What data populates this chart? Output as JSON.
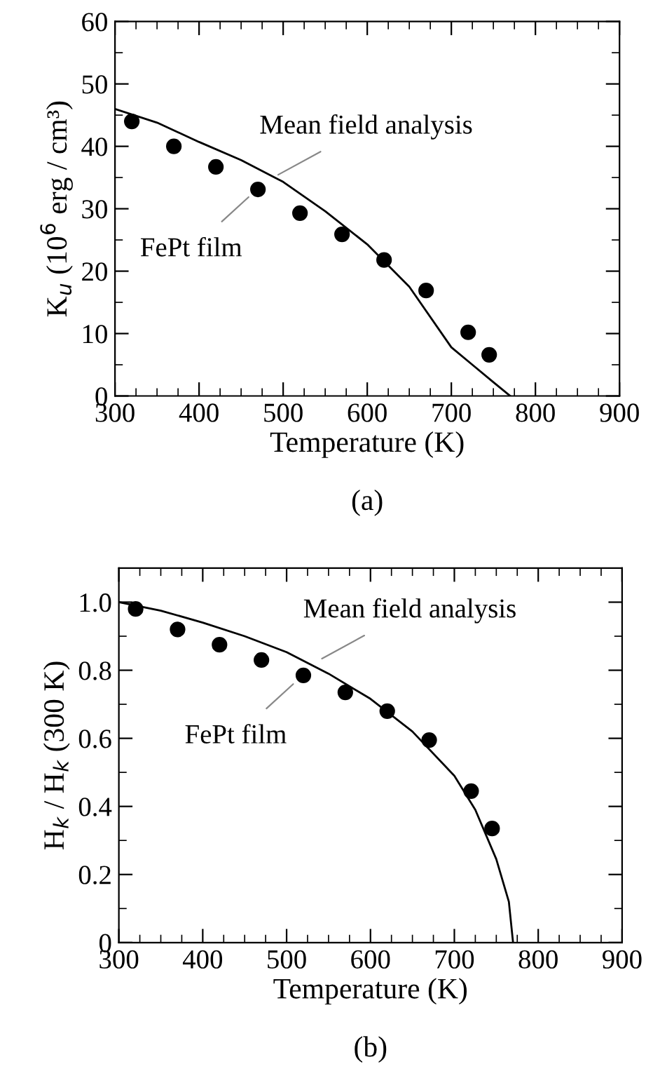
{
  "chart_data": [
    {
      "type": "scatter",
      "xlabel": "Temperature (K)",
      "ylabel": "K$_{u}$ (10$^{6}$ erg / cm³)",
      "xlim": [
        300,
        900
      ],
      "ylim": [
        0,
        60
      ],
      "xticks": [
        300,
        400,
        500,
        600,
        700,
        800,
        900
      ],
      "yticks": [
        0,
        10,
        20,
        30,
        40,
        50,
        60
      ],
      "grid": false,
      "marker": "circle",
      "series": [
        {
          "color": "#000000",
          "x": [
            320,
            370,
            420,
            470,
            520,
            570,
            620,
            670,
            720,
            745
          ],
          "values": [
            44,
            40,
            36.7,
            33.1,
            29.3,
            25.9,
            21.8,
            16.9,
            10.2,
            6.6
          ]
        },
        {
          "type": "line",
          "color": "#000000",
          "line_style": "solid",
          "marker": "none",
          "x": [
            300,
            350,
            400,
            450,
            500,
            550,
            600,
            650,
            700,
            725,
            750,
            770
          ],
          "values": [
            46,
            43.8,
            40.7,
            37.8,
            34.3,
            29.6,
            24.3,
            17.5,
            7.8,
            5,
            2.2,
            0
          ]
        }
      ],
      "annotations": [
        {
          "text": "Mean field analysis",
          "x": 488,
          "y": 35
        },
        {
          "text": "FePt film",
          "x": 464,
          "y": 32.5
        },
        "(a)"
      ]
    },
    {
      "type": "scatter",
      "xlabel": "Temperature (K)",
      "ylabel": "H$_{k}$ / H$_{k}$ (300 K)",
      "xlim": [
        300,
        900
      ],
      "ylim": [
        0,
        1.1
      ],
      "xticks": [
        300,
        400,
        500,
        600,
        700,
        800,
        900
      ],
      "yticks": [
        0,
        0.2,
        0.4,
        0.6,
        0.8,
        {
          "value": 1,
          "label": "1.0"
        }
      ],
      "grid": false,
      "marker": "circle",
      "series": [
        {
          "color": "#000000",
          "x": [
            320,
            370,
            420,
            470,
            520,
            570,
            620,
            670,
            720,
            745
          ],
          "values": [
            0.98,
            0.92,
            0.875,
            0.83,
            0.785,
            0.735,
            0.68,
            0.595,
            0.445,
            0.335
          ]
        },
        {
          "type": "line",
          "color": "#000000",
          "line_style": "solid",
          "marker": "none",
          "x": [
            300,
            350,
            400,
            450,
            500,
            550,
            600,
            650,
            700,
            725,
            750,
            765,
            770
          ],
          "values": [
            1.0,
            0.975,
            0.94,
            0.9,
            0.853,
            0.79,
            0.716,
            0.62,
            0.49,
            0.39,
            0.245,
            0.12,
            0
          ]
        }
      ],
      "annotations": [
        {
          "text": "Mean field analysis",
          "x": 536,
          "y": 0.826
        },
        {
          "text": "FePt film",
          "x": 513,
          "y": 0.771
        },
        "(b)"
      ]
    }
  ]
}
